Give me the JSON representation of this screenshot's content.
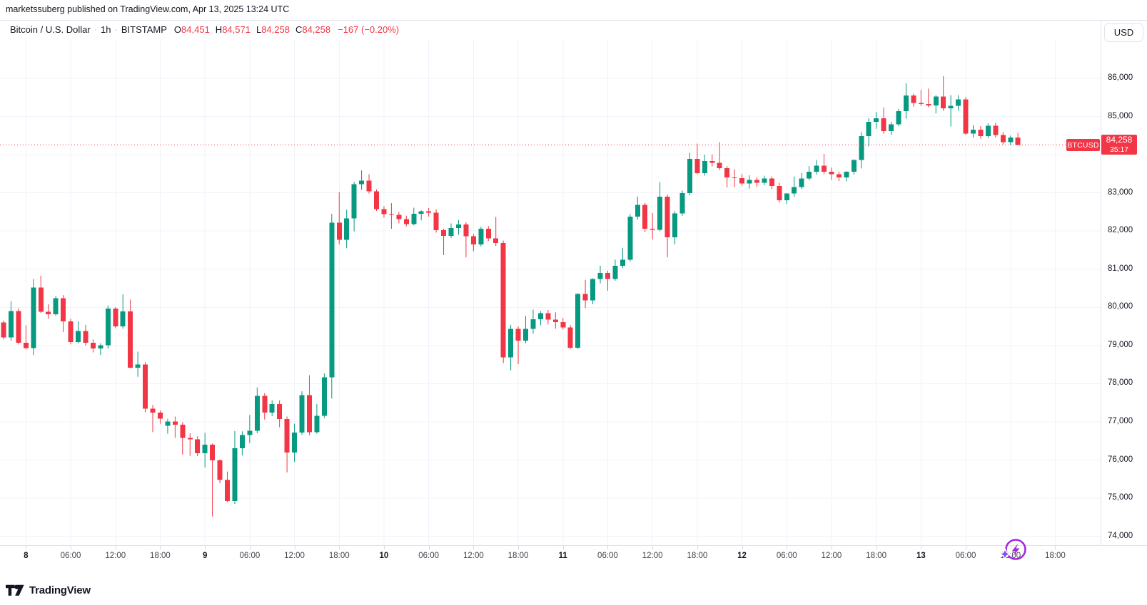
{
  "attribution": "marketssuberg published on TradingView.com, Apr 13, 2025 13:24 UTC",
  "header": {
    "symbol_title": "Bitcoin / U.S. Dollar",
    "separator": "·",
    "interval": "1h",
    "exchange": "BITSTAMP",
    "ohlc": {
      "o_label": "O",
      "o": "84,451",
      "h_label": "H",
      "h": "84,571",
      "l_label": "L",
      "l": "84,258",
      "c_label": "C",
      "c": "84,258",
      "change": "−167 (−0.20%)"
    },
    "currency_button": "USD"
  },
  "price_line": {
    "symbol": "BTCUSD",
    "price": "84,258",
    "countdown": "35:17",
    "value": 84258
  },
  "footer": {
    "logo_text": "TradingView"
  },
  "colors": {
    "up": "#089981",
    "down": "#F23645",
    "grid": "#F0F3FA",
    "price_line": "#F23645",
    "axis_text": "#131722",
    "boost_purple": "#A22BDB",
    "boost_spark": "#7C4DFF"
  },
  "chart_data": {
    "type": "candlestick",
    "symbol": "BTCUSD",
    "exchange": "BITSTAMP",
    "interval": "1h",
    "title": "Bitcoin / U.S. Dollar · 1h · BITSTAMP",
    "grid": true,
    "y_axis": {
      "min": 73500,
      "max": 86500,
      "tick_step": 1000
    },
    "y_tick_labels": [
      {
        "text": "86,000",
        "price": 86000
      },
      {
        "text": "85,000",
        "price": 85000
      },
      {
        "text": "83,000",
        "price": 83000
      },
      {
        "text": "82,000",
        "price": 82000
      },
      {
        "text": "81,000",
        "price": 81000
      },
      {
        "text": "80,000",
        "price": 80000
      },
      {
        "text": "79,000",
        "price": 79000
      },
      {
        "text": "78,000",
        "price": 78000
      },
      {
        "text": "77,000",
        "price": 77000
      },
      {
        "text": "76,000",
        "price": 76000
      },
      {
        "text": "75,000",
        "price": 75000
      },
      {
        "text": "74,000",
        "price": 74000
      }
    ],
    "grid_prices": [
      74000,
      75000,
      76000,
      77000,
      78000,
      79000,
      80000,
      81000,
      82000,
      83000,
      84000,
      85000,
      86000
    ],
    "x_ticks": [
      {
        "label": "8",
        "major": true
      },
      {
        "label": "06:00",
        "major": false
      },
      {
        "label": "12:00",
        "major": false
      },
      {
        "label": "18:00",
        "major": false
      },
      {
        "label": "9",
        "major": true
      },
      {
        "label": "06:00",
        "major": false
      },
      {
        "label": "12:00",
        "major": false
      },
      {
        "label": "18:00",
        "major": false
      },
      {
        "label": "10",
        "major": true
      },
      {
        "label": "06:00",
        "major": false
      },
      {
        "label": "12:00",
        "major": false
      },
      {
        "label": "18:00",
        "major": false
      },
      {
        "label": "11",
        "major": true
      },
      {
        "label": "06:00",
        "major": false
      },
      {
        "label": "12:00",
        "major": false
      },
      {
        "label": "18:00",
        "major": false
      },
      {
        "label": "12",
        "major": true
      },
      {
        "label": "06:00",
        "major": false
      },
      {
        "label": "12:00",
        "major": false
      },
      {
        "label": "18:00",
        "major": false
      },
      {
        "label": "13",
        "major": true
      },
      {
        "label": "06:00",
        "major": false
      },
      {
        "label": "12:00",
        "major": false
      },
      {
        "label": "18:00",
        "major": false
      }
    ],
    "current_price": 84258,
    "current_bar": {
      "open": 84451,
      "high": 84571,
      "low": 84258,
      "close": 84258
    },
    "candles": [
      [
        79600,
        79650,
        79160,
        79210
      ],
      [
        79210,
        80160,
        79120,
        79900
      ],
      [
        79900,
        79970,
        79030,
        79070
      ],
      [
        79070,
        79530,
        78900,
        78930
      ],
      [
        78930,
        80740,
        78750,
        80520
      ],
      [
        80520,
        80830,
        79850,
        79880
      ],
      [
        79880,
        80080,
        79700,
        79820
      ],
      [
        79820,
        80300,
        79780,
        80240
      ],
      [
        80240,
        80320,
        79350,
        79630
      ],
      [
        79630,
        79700,
        79030,
        79090
      ],
      [
        79090,
        79630,
        79060,
        79380
      ],
      [
        79380,
        79540,
        79000,
        79070
      ],
      [
        79070,
        79160,
        78820,
        78920
      ],
      [
        78920,
        79060,
        78750,
        79010
      ],
      [
        79010,
        80050,
        78920,
        79970
      ],
      [
        79970,
        80000,
        79450,
        79500
      ],
      [
        79500,
        80340,
        79440,
        79890
      ],
      [
        79890,
        80200,
        78400,
        78420
      ],
      [
        78420,
        78840,
        78180,
        78500
      ],
      [
        78500,
        78560,
        77250,
        77340
      ],
      [
        77340,
        77440,
        76730,
        77240
      ],
      [
        77240,
        77300,
        76950,
        77080
      ],
      [
        76900,
        77080,
        76690,
        77010
      ],
      [
        77010,
        77140,
        76580,
        76920
      ],
      [
        76920,
        76990,
        76140,
        76580
      ],
      [
        76580,
        76700,
        76110,
        76540
      ],
      [
        76540,
        76620,
        76100,
        76180
      ],
      [
        76180,
        76710,
        75800,
        76400
      ],
      [
        76400,
        76430,
        74520,
        75990
      ],
      [
        75990,
        76020,
        75390,
        75480
      ],
      [
        75480,
        75700,
        74900,
        74930
      ],
      [
        74930,
        76760,
        74850,
        76310
      ],
      [
        76310,
        76750,
        76120,
        76650
      ],
      [
        76650,
        77180,
        76440,
        76770
      ],
      [
        76770,
        77900,
        76700,
        77680
      ],
      [
        77680,
        77750,
        77060,
        77240
      ],
      [
        77240,
        77560,
        77150,
        77470
      ],
      [
        77470,
        77560,
        76860,
        77070
      ],
      [
        77070,
        77140,
        75670,
        76200
      ],
      [
        76200,
        76950,
        75950,
        76720
      ],
      [
        76720,
        77800,
        76660,
        77700
      ],
      [
        77700,
        78220,
        76650,
        76730
      ],
      [
        76730,
        77470,
        76690,
        77160
      ],
      [
        77160,
        78270,
        77100,
        78170
      ],
      [
        78170,
        82450,
        77610,
        82220
      ],
      [
        82220,
        83020,
        81650,
        81770
      ],
      [
        81770,
        82560,
        81550,
        82330
      ],
      [
        82330,
        83290,
        81990,
        83230
      ],
      [
        83230,
        83590,
        83080,
        83320
      ],
      [
        83320,
        83490,
        82980,
        83040
      ],
      [
        83040,
        83090,
        82530,
        82570
      ],
      [
        82570,
        82650,
        82350,
        82440
      ],
      [
        82440,
        82730,
        82060,
        82420
      ],
      [
        82420,
        82500,
        82200,
        82310
      ],
      [
        82310,
        82400,
        82120,
        82180
      ],
      [
        82180,
        82610,
        82150,
        82450
      ],
      [
        82450,
        82540,
        82280,
        82520
      ],
      [
        82520,
        82600,
        82380,
        82480
      ],
      [
        82480,
        82570,
        81960,
        82025
      ],
      [
        82025,
        82060,
        81370,
        81870
      ],
      [
        81870,
        82200,
        81820,
        82075
      ],
      [
        82075,
        82290,
        81900,
        82170
      ],
      [
        82170,
        82230,
        81310,
        81860
      ],
      [
        81860,
        81920,
        81470,
        81650
      ],
      [
        81650,
        82110,
        81600,
        82060
      ],
      [
        82060,
        82130,
        81740,
        81810
      ],
      [
        81810,
        82370,
        81610,
        81690
      ],
      [
        81690,
        81750,
        78540,
        78690
      ],
      [
        78690,
        79540,
        78350,
        79440
      ],
      [
        79440,
        79500,
        78510,
        79130
      ],
      [
        79130,
        79780,
        79060,
        79440
      ],
      [
        79440,
        79940,
        79310,
        79690
      ],
      [
        79690,
        79900,
        79530,
        79850
      ],
      [
        79850,
        79930,
        79550,
        79680
      ],
      [
        79680,
        79870,
        79440,
        79610
      ],
      [
        79610,
        79720,
        79420,
        79470
      ],
      [
        79470,
        79530,
        78910,
        78940
      ],
      [
        78940,
        80370,
        78910,
        80350
      ],
      [
        80350,
        80720,
        79980,
        80180
      ],
      [
        80180,
        80760,
        80080,
        80740
      ],
      [
        80740,
        81090,
        80630,
        80900
      ],
      [
        80900,
        80960,
        80435,
        80740
      ],
      [
        80740,
        81250,
        80700,
        81090
      ],
      [
        81090,
        81560,
        81030,
        81250
      ],
      [
        81250,
        82440,
        81200,
        82380
      ],
      [
        82380,
        82900,
        82300,
        82690
      ],
      [
        82690,
        82740,
        81970,
        82060
      ],
      [
        82060,
        82470,
        81780,
        82030
      ],
      [
        82030,
        83280,
        81990,
        82900
      ],
      [
        82900,
        82960,
        81310,
        81840
      ],
      [
        81840,
        82520,
        81650,
        82460
      ],
      [
        82460,
        83060,
        82400,
        82990
      ],
      [
        82990,
        84050,
        82940,
        83890
      ],
      [
        83890,
        84290,
        83490,
        83520
      ],
      [
        83520,
        84000,
        83450,
        83830
      ],
      [
        83830,
        84010,
        83690,
        83790
      ],
      [
        83790,
        84330,
        83600,
        83650
      ],
      [
        83650,
        83700,
        83140,
        83400
      ],
      [
        83400,
        83620,
        83150,
        83390
      ],
      [
        83390,
        83500,
        83180,
        83250
      ],
      [
        83250,
        83460,
        83110,
        83340
      ],
      [
        83340,
        83420,
        83160,
        83260
      ],
      [
        83260,
        83450,
        83200,
        83380
      ],
      [
        83380,
        83430,
        83100,
        83180
      ],
      [
        83180,
        83260,
        82750,
        82810
      ],
      [
        82810,
        82990,
        82710,
        82980
      ],
      [
        82980,
        83430,
        82900,
        83150
      ],
      [
        83150,
        83520,
        83100,
        83380
      ],
      [
        83380,
        83700,
        83330,
        83550
      ],
      [
        83550,
        83860,
        83480,
        83710
      ],
      [
        83710,
        84020,
        83490,
        83550
      ],
      [
        83550,
        83660,
        83340,
        83490
      ],
      [
        83490,
        83560,
        83310,
        83400
      ],
      [
        83400,
        83570,
        83300,
        83550
      ],
      [
        83550,
        83880,
        83480,
        83860
      ],
      [
        83860,
        84590,
        83640,
        84490
      ],
      [
        84490,
        84960,
        84220,
        84860
      ],
      [
        84860,
        85120,
        84680,
        84950
      ],
      [
        84950,
        85240,
        84550,
        84620
      ],
      [
        84620,
        84860,
        84520,
        84800
      ],
      [
        84800,
        85200,
        84750,
        85140
      ],
      [
        85140,
        85870,
        84940,
        85550
      ],
      [
        85550,
        85600,
        85260,
        85360
      ],
      [
        85360,
        85700,
        85280,
        85330
      ],
      [
        85330,
        85730,
        85240,
        85290
      ],
      [
        85290,
        85560,
        85080,
        85520
      ],
      [
        85520,
        86060,
        85150,
        85220
      ],
      [
        85220,
        85560,
        84740,
        85280
      ],
      [
        85280,
        85560,
        85150,
        85450
      ],
      [
        85450,
        85510,
        84520,
        84550
      ],
      [
        84550,
        84780,
        84450,
        84660
      ],
      [
        84660,
        84750,
        84420,
        84490
      ],
      [
        84490,
        84820,
        84440,
        84760
      ],
      [
        84760,
        84830,
        84450,
        84520
      ],
      [
        84520,
        84590,
        84270,
        84330
      ],
      [
        84330,
        84500,
        84250,
        84451
      ],
      [
        84451,
        84571,
        84258,
        84258
      ]
    ]
  }
}
